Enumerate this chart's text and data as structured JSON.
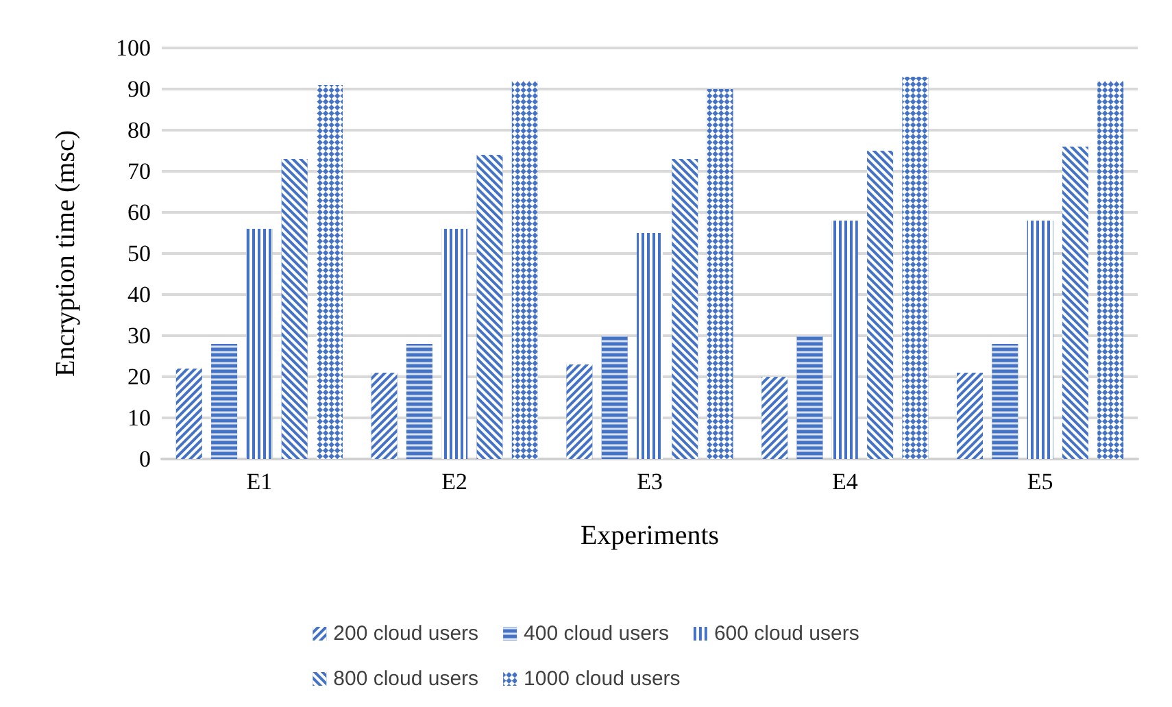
{
  "chart_data": {
    "type": "bar",
    "xlabel": "Experiments",
    "ylabel": "Encryption time (msc)",
    "categories": [
      "E1",
      "E2",
      "E3",
      "E4",
      "E5"
    ],
    "series": [
      {
        "name": "200 cloud users",
        "color": "#4472c4",
        "values": [
          22,
          21,
          23,
          20,
          21
        ]
      },
      {
        "name": "400 cloud users",
        "color": "#4472c4",
        "values": [
          28,
          28,
          30,
          30,
          28
        ]
      },
      {
        "name": "600 cloud users",
        "color": "#4472c4",
        "values": [
          56,
          56,
          55,
          58,
          58
        ]
      },
      {
        "name": "800 cloud users",
        "color": "#4472c4",
        "values": [
          73,
          74,
          73,
          75,
          76
        ]
      },
      {
        "name": "1000 cloud users",
        "color": "#4472c4",
        "values": [
          91,
          92,
          90,
          93,
          92
        ]
      }
    ],
    "ylim": [
      0,
      100
    ],
    "yticks": [
      0,
      10,
      20,
      30,
      40,
      50,
      60,
      70,
      80,
      90,
      100
    ],
    "grid": "y",
    "legend": "bottom"
  }
}
